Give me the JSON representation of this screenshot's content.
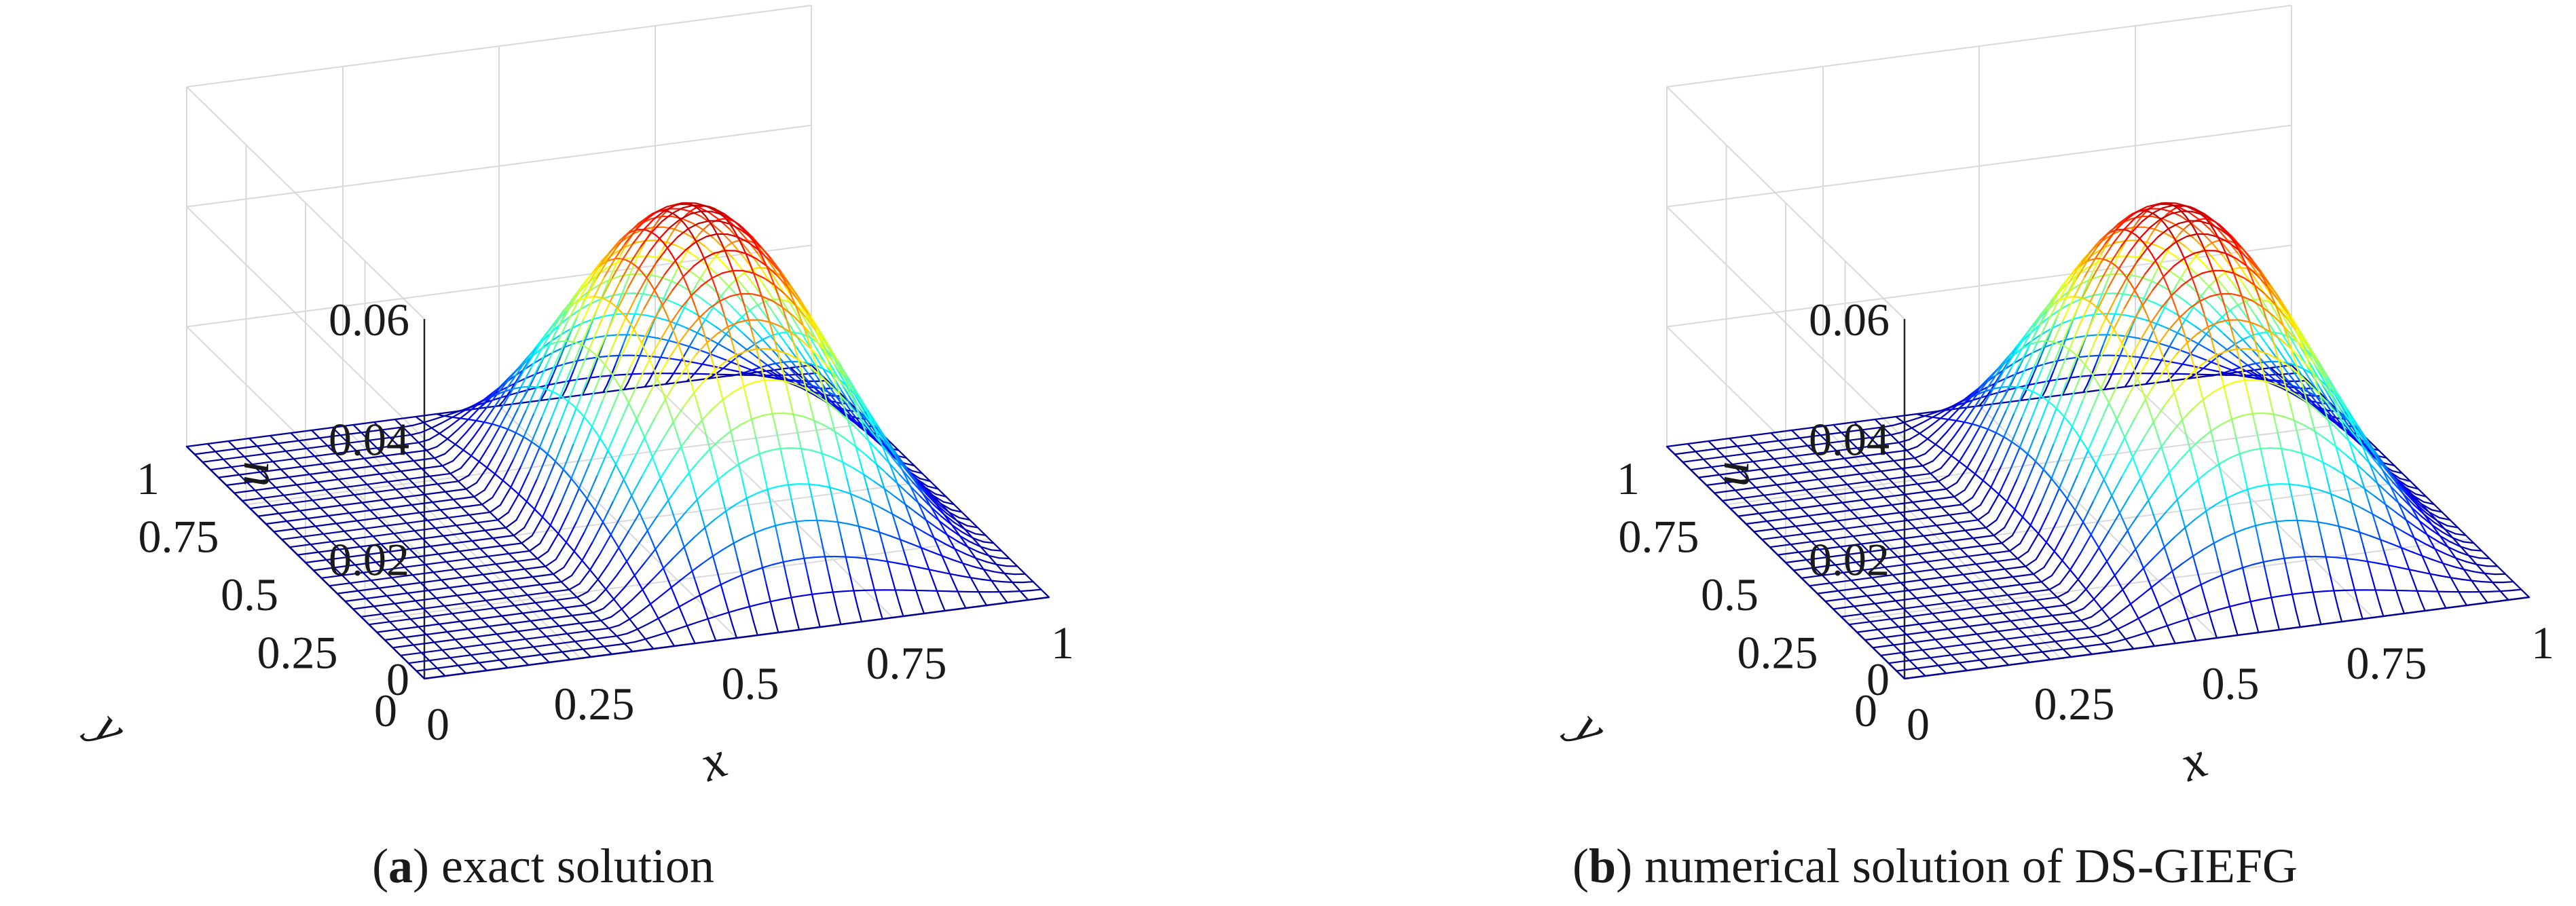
{
  "chart_data": [
    {
      "type": "surface",
      "caption_letter": "a",
      "caption_text": "exact solution",
      "xlabel": "x",
      "ylabel": "y",
      "zlabel": "u",
      "xlim": [
        0,
        1
      ],
      "ylim": [
        0,
        1
      ],
      "zlim": [
        0,
        0.06
      ],
      "x_ticks": [
        "0",
        "0.25",
        "0.5",
        "0.75",
        "1"
      ],
      "y_ticks": [
        "0",
        "0.25",
        "0.5",
        "0.75",
        "1"
      ],
      "z_ticks": [
        "0",
        "0.02",
        "0.04",
        "0.06"
      ],
      "peak": {
        "x": 0.68,
        "y": 0.5,
        "u": 0.05
      },
      "grid": true,
      "colormap": "jet",
      "mesh_lines": 31
    },
    {
      "type": "surface",
      "caption_letter": "b",
      "caption_text": "numerical solution of DS-GIEFG",
      "xlabel": "x",
      "ylabel": "y",
      "zlabel": "u",
      "xlim": [
        0,
        1
      ],
      "ylim": [
        0,
        1
      ],
      "zlim": [
        0,
        0.06
      ],
      "x_ticks": [
        "0",
        "0.25",
        "0.5",
        "0.75",
        "1"
      ],
      "y_ticks": [
        "0",
        "0.25",
        "0.5",
        "0.75",
        "1"
      ],
      "z_ticks": [
        "0",
        "0.02",
        "0.04",
        "0.06"
      ],
      "peak": {
        "x": 0.68,
        "y": 0.5,
        "u": 0.05
      },
      "grid": true,
      "colormap": "jet",
      "mesh_lines": 31
    }
  ]
}
